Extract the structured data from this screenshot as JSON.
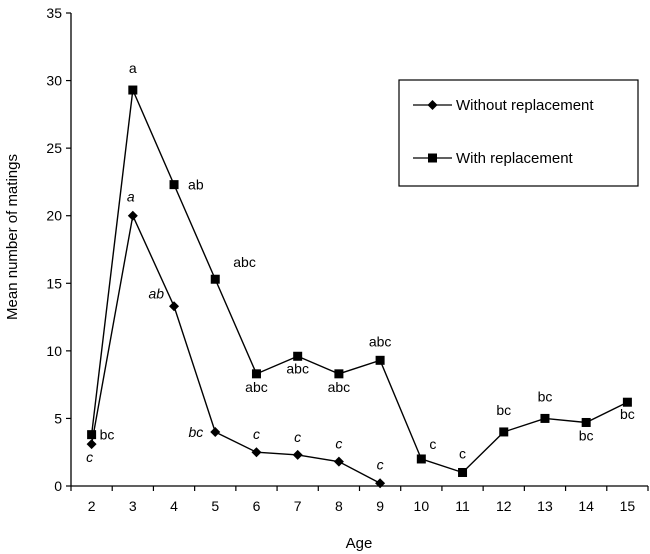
{
  "chart_data": {
    "type": "line",
    "xlabel": "Age",
    "ylabel": "Mean number of matings",
    "ylim": [
      0,
      35
    ],
    "yticks": [
      0,
      5,
      10,
      15,
      20,
      25,
      30,
      35
    ],
    "x": [
      2,
      3,
      4,
      5,
      6,
      7,
      8,
      9,
      10,
      11,
      12,
      13,
      14,
      15
    ],
    "grid": false,
    "legend_position": "top-right",
    "series": [
      {
        "name": "Without replacement",
        "marker": "diamond",
        "color": "#000000",
        "x": [
          2,
          3,
          4,
          5,
          6,
          7,
          8,
          9
        ],
        "values": [
          3.1,
          20.0,
          13.3,
          4.0,
          2.5,
          2.3,
          1.8,
          0.2
        ],
        "labels": [
          "c",
          "a",
          "ab",
          "bc",
          "c",
          "c",
          "c",
          "c"
        ],
        "label_style": "italic"
      },
      {
        "name": "With replacement",
        "marker": "square",
        "color": "#000000",
        "x": [
          2,
          3,
          4,
          5,
          6,
          7,
          8,
          9,
          10,
          11,
          12,
          13,
          14,
          15
        ],
        "values": [
          3.8,
          29.3,
          22.3,
          15.3,
          8.3,
          9.6,
          8.3,
          9.3,
          2.0,
          1.0,
          4.0,
          5.0,
          4.7,
          6.2
        ],
        "labels": [
          "bc",
          "a",
          "ab",
          "abc",
          "abc",
          "abc",
          "abc",
          "abc",
          "c",
          "c",
          "bc",
          "bc",
          "bc",
          "bc"
        ],
        "label_style": "normal"
      }
    ]
  }
}
